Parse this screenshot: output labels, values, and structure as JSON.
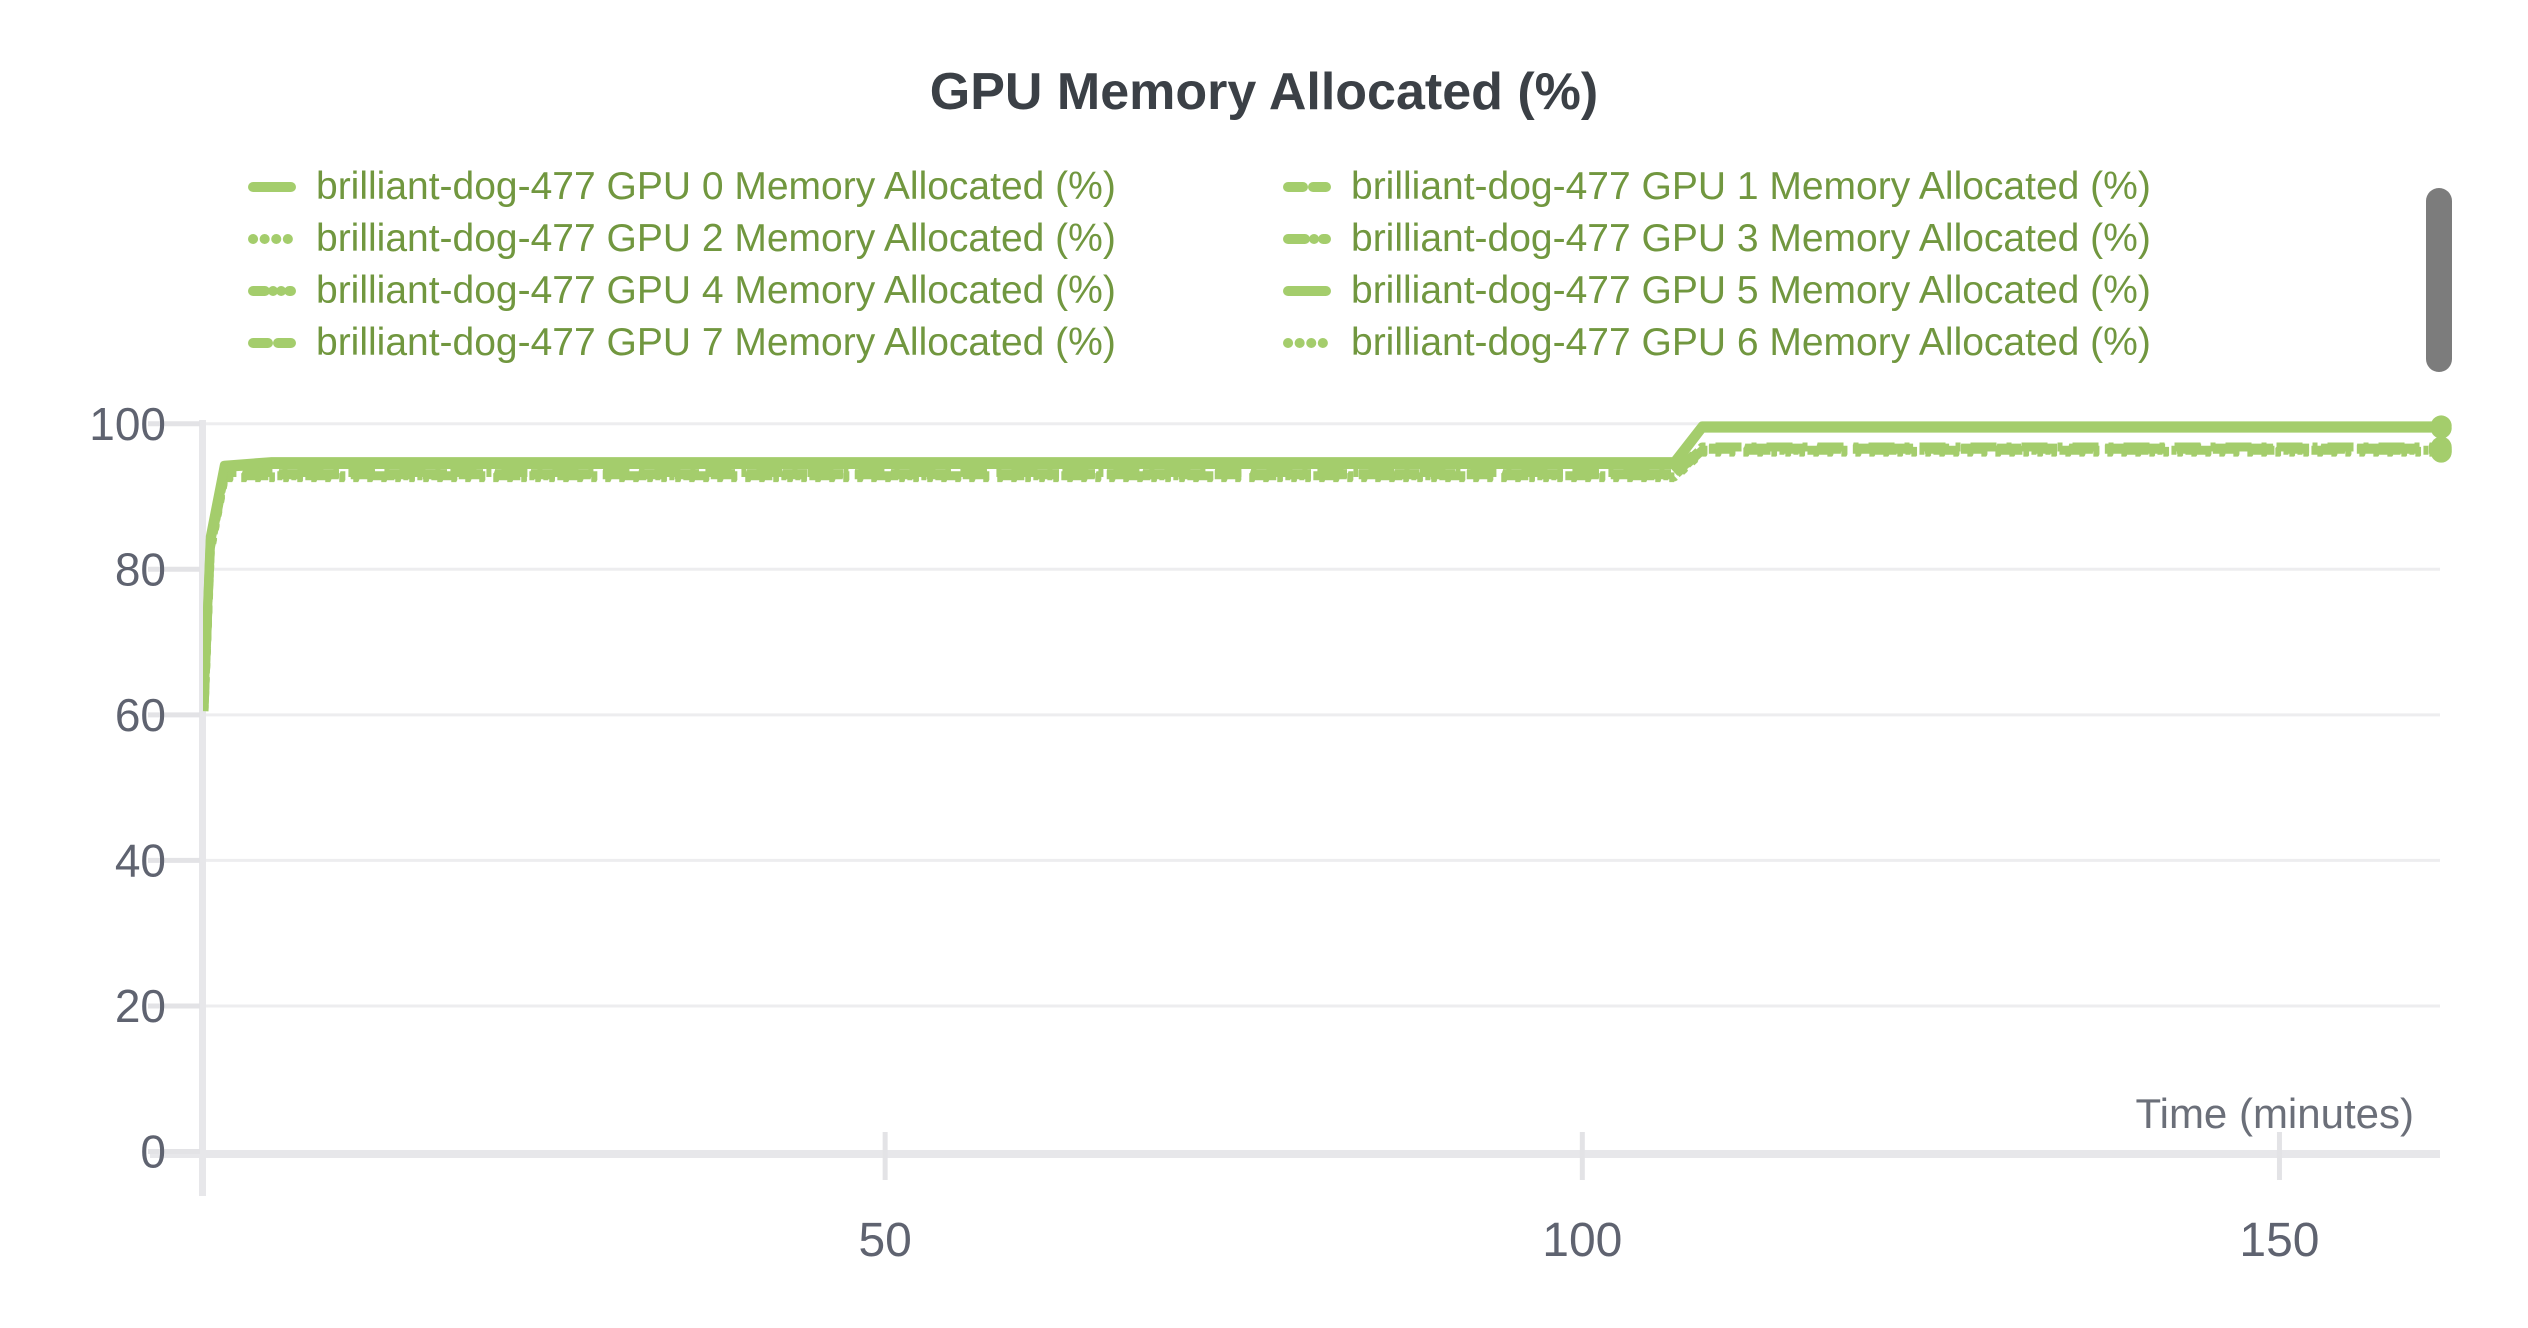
{
  "chart_data": {
    "type": "line",
    "title": "GPU Memory Allocated (%)",
    "xlabel": "Time (minutes)",
    "ylabel": "",
    "xlim": [
      0,
      163
    ],
    "ylim": [
      0,
      100
    ],
    "xticks": [
      50,
      100,
      150
    ],
    "yticks": [
      0,
      20,
      40,
      60,
      80,
      100
    ],
    "grid": "horizontal",
    "legend_position": "top",
    "colors": {
      "line": "#a4cd6c",
      "legend_text": "#71973f",
      "title_text": "#3b4046",
      "axis_text": "#5f6370",
      "xlabel_text": "#6b6f79",
      "gridline": "#ededef",
      "axis_line": "#e7e7ea",
      "tick": "#e3e3e6",
      "scrollbar": "#7c7c7c"
    },
    "legend": [
      {
        "label": "brilliant-dog-477 GPU 0 Memory Allocated (%)",
        "style": "solid"
      },
      {
        "label": "brilliant-dog-477 GPU 1 Memory Allocated (%)",
        "style": "dashed"
      },
      {
        "label": "brilliant-dog-477 GPU 2 Memory Allocated (%)",
        "style": "dotted"
      },
      {
        "label": "brilliant-dog-477 GPU 3 Memory Allocated (%)",
        "style": "dashdot"
      },
      {
        "label": "brilliant-dog-477 GPU 4 Memory Allocated (%)",
        "style": "dashdotdot"
      },
      {
        "label": "brilliant-dog-477 GPU 5 Memory Allocated (%)",
        "style": "solid"
      },
      {
        "label": "brilliant-dog-477 GPU 7 Memory Allocated (%)",
        "style": "dashed"
      },
      {
        "label": "brilliant-dog-477 GPU 6 Memory Allocated (%)",
        "style": "dotted"
      }
    ],
    "series": [
      {
        "name": "GPU 6",
        "style": "dotted",
        "points": [
          [
            1.15,
            60.5
          ],
          [
            1.6,
            82.5
          ],
          [
            2.6,
            92.6
          ],
          [
            106.6,
            92.6
          ],
          [
            108.6,
            96.1
          ],
          [
            161.6,
            96.1
          ]
        ]
      },
      {
        "name": "GPU 2",
        "style": "dotted",
        "points": [
          [
            1.15,
            60.7
          ],
          [
            1.6,
            82.7
          ],
          [
            2.6,
            92.7
          ],
          [
            106.6,
            92.7
          ],
          [
            108.6,
            96.2
          ],
          [
            161.6,
            96.2
          ]
        ]
      },
      {
        "name": "GPU 4",
        "style": "dashdotdot",
        "points": [
          [
            1.15,
            60.9
          ],
          [
            1.6,
            82.9
          ],
          [
            2.6,
            92.85
          ],
          [
            106.6,
            92.85
          ],
          [
            108.6,
            96.35
          ],
          [
            161.6,
            96.35
          ]
        ]
      },
      {
        "name": "GPU 7",
        "style": "dashed",
        "points": [
          [
            1.15,
            61.1
          ],
          [
            1.6,
            83.1
          ],
          [
            2.6,
            93.0
          ],
          [
            106.6,
            93.0
          ],
          [
            108.6,
            96.5
          ],
          [
            161.6,
            96.5
          ]
        ]
      },
      {
        "name": "GPU 1",
        "style": "dashed",
        "points": [
          [
            1.15,
            61.3
          ],
          [
            1.6,
            83.3
          ],
          [
            2.6,
            93.15
          ],
          [
            106.6,
            93.15
          ],
          [
            108.6,
            96.65
          ],
          [
            161.6,
            96.65
          ]
        ]
      },
      {
        "name": "GPU 3",
        "style": "dashdot",
        "points": [
          [
            1.15,
            61.5
          ],
          [
            1.6,
            83.5
          ],
          [
            2.6,
            93.3
          ],
          [
            106.6,
            93.3
          ],
          [
            108.6,
            96.8
          ],
          [
            161.6,
            96.8
          ]
        ]
      },
      {
        "name": "GPU 5",
        "style": "solid",
        "points": [
          [
            1.15,
            62.0
          ],
          [
            1.6,
            84.0
          ],
          [
            2.6,
            94.0
          ],
          [
            6,
            94.4
          ],
          [
            106.6,
            94.4
          ],
          [
            108.6,
            99.4
          ],
          [
            161.6,
            99.4
          ]
        ]
      },
      {
        "name": "GPU 0",
        "style": "solid",
        "points": [
          [
            1.15,
            62.5
          ],
          [
            1.6,
            84.5
          ],
          [
            2.6,
            94.3
          ],
          [
            6,
            94.8
          ],
          [
            106.6,
            94.8
          ],
          [
            108.6,
            99.7
          ],
          [
            161.6,
            99.7
          ]
        ]
      }
    ]
  }
}
